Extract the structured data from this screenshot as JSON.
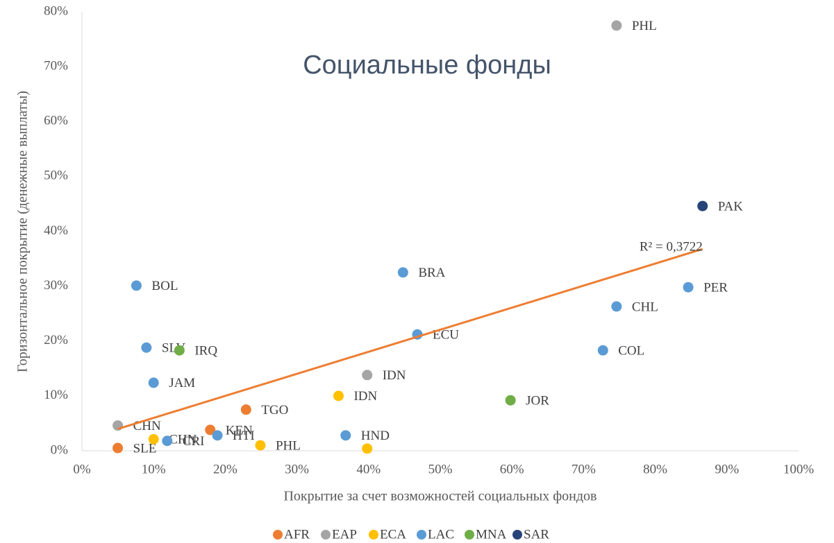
{
  "chart_data": {
    "type": "scatter",
    "title": "Социальные фонды",
    "xlabel": "Покрытие за счет возможностей социальных фондов",
    "ylabel": "Горизонтальное покрытие (денежные выплаты)",
    "annotation": "R² = 0,3722",
    "trendline": true,
    "trendline_color": "#ED7D31",
    "legend": "bottom",
    "grid": false,
    "xlim": [
      0,
      100
    ],
    "ylim": [
      0,
      80
    ],
    "xticks": [
      {
        "value": 0,
        "label": "0%"
      },
      {
        "value": 10,
        "label": "10%"
      },
      {
        "value": 20,
        "label": "20%"
      },
      {
        "value": 30,
        "label": "30%"
      },
      {
        "value": 40,
        "label": "40%"
      },
      {
        "value": 50,
        "label": "50%"
      },
      {
        "value": 60,
        "label": "60%"
      },
      {
        "value": 70,
        "label": "70%"
      },
      {
        "value": 80,
        "label": "80%"
      },
      {
        "value": 90,
        "label": "90%"
      },
      {
        "value": 100,
        "label": "100%"
      }
    ],
    "yticks": [
      {
        "value": 0,
        "label": "0%"
      },
      {
        "value": 10,
        "label": "10%"
      },
      {
        "value": 20,
        "label": "20%"
      },
      {
        "value": 30,
        "label": "30%"
      },
      {
        "value": 40,
        "label": "40%"
      },
      {
        "value": 50,
        "label": "50%"
      },
      {
        "value": 60,
        "label": "60%"
      },
      {
        "value": 70,
        "label": "70%"
      },
      {
        "value": 80,
        "label": "80%"
      }
    ],
    "series": [
      {
        "name": "AFR",
        "color": "#ED7D31",
        "x": [
          5.0,
          17.9,
          22.9
        ],
        "values": [
          0.5,
          3.8,
          7.5
        ],
        "labels": [
          "SLE",
          "KEN",
          "TGO"
        ]
      },
      {
        "name": "EAP",
        "color": "#A5A5A5",
        "x": [
          74.6,
          39.8,
          5.0
        ],
        "values": [
          77.5,
          13.8,
          4.6
        ],
        "labels": [
          "PHL",
          "IDN",
          "CHN"
        ]
      },
      {
        "name": "ECA",
        "color": "#FFC000",
        "x": [
          10.0,
          24.9,
          35.8,
          39.8
        ],
        "values": [
          2.1,
          1.0,
          10.0,
          0.4
        ],
        "labels": [
          "CHN",
          "PHL",
          "IDN",
          null
        ]
      },
      {
        "name": "LAC",
        "color": "#5B9BD5",
        "x": [
          7.6,
          9.0,
          10.0,
          11.9,
          18.9,
          36.8,
          44.8,
          46.8,
          74.6,
          72.7,
          84.6
        ],
        "values": [
          30.1,
          18.8,
          12.4,
          1.8,
          2.8,
          2.8,
          32.5,
          21.2,
          26.3,
          18.3,
          29.8
        ],
        "labels": [
          "BOL",
          "SLV",
          "JAM",
          "CRI",
          "HTI",
          "HND",
          "BRA",
          "ECU",
          "CHL",
          "COL",
          "PER"
        ]
      },
      {
        "name": "MNA",
        "color": "#70AD47",
        "x": [
          13.6,
          59.8
        ],
        "values": [
          18.3,
          9.2
        ],
        "labels": [
          "IRQ",
          "JOR"
        ]
      },
      {
        "name": "SAR",
        "color": "#264478",
        "x": [
          86.6
        ],
        "values": [
          44.6
        ],
        "labels": [
          "PAK"
        ]
      }
    ]
  }
}
